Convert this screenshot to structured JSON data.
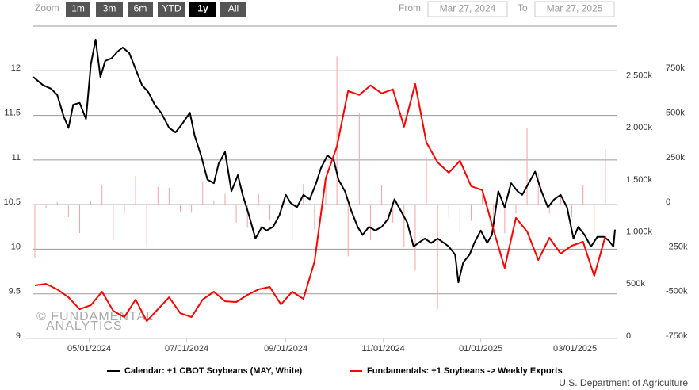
{
  "ui": {
    "zoom_label": "Zoom",
    "buttons": [
      "1m",
      "3m",
      "6m",
      "YTD",
      "1y",
      "All"
    ],
    "selected_button": 4,
    "from_label": "From",
    "from": "Mar 27, 2024",
    "to_label": "To",
    "to": "Mar 27, 2025",
    "watermark": [
      "© FUNDAMENTAL",
      "ANALYTICS"
    ],
    "credits": "U.S. Department of Agriculture"
  },
  "chart_data": {
    "type": "combo",
    "xlim": [
      "03/27/2024",
      "03/27/2025"
    ],
    "xticks": [
      "05/01/2024",
      "07/01/2024",
      "09/01/2024",
      "11/01/2024",
      "01/01/2025",
      "03/01/2025"
    ],
    "ylim": [
      9,
      12.5
    ],
    "yticks": [
      9,
      9.5,
      10,
      10.5,
      11,
      11.5,
      12
    ],
    "y2lim": [
      0,
      3000
    ],
    "y2ticks": [
      0,
      {
        "value": 500,
        "label": "500k"
      },
      {
        "value": 1000,
        "label": "1,000k"
      },
      {
        "value": 1500,
        "label": "1,500k"
      },
      {
        "value": 2000,
        "label": "2,000k"
      },
      {
        "value": 2500,
        "label": "2,500k"
      }
    ],
    "y3lim": [
      -750,
      1000
    ],
    "y3ticks": [
      {
        "value": -750,
        "label": "-750k"
      },
      {
        "value": -500,
        "label": "-500k"
      },
      {
        "value": -250,
        "label": "-250k"
      },
      0,
      {
        "value": 250,
        "label": "250k"
      },
      {
        "value": 500,
        "label": "500k"
      },
      {
        "value": 750,
        "label": "750k"
      }
    ],
    "grid": true,
    "series": [
      {
        "name": "Calendar: +1 CBOT Soybeans (MAY, White)",
        "type": "line",
        "axis": "y",
        "color": "#000000",
        "x": [
          "03/27/2024",
          "04/02/2024",
          "04/07/2024",
          "04/11/2024",
          "04/15/2024",
          "04/18/2024",
          "04/21/2024",
          "04/25/2024",
          "04/29/2024",
          "05/02/2024",
          "05/05/2024",
          "05/08/2024",
          "05/11/2024",
          "05/15/2024",
          "05/19/2024",
          "05/22/2024",
          "05/26/2024",
          "05/30/2024",
          "06/03/2024",
          "06/07/2024",
          "06/11/2024",
          "06/15/2024",
          "06/20/2024",
          "06/24/2024",
          "06/28/2024",
          "07/03/2024",
          "07/06/2024",
          "07/10/2024",
          "07/14/2024",
          "07/18/2024",
          "07/21/2024",
          "07/25/2024",
          "07/29/2024",
          "08/02/2024",
          "08/05/2024",
          "08/09/2024",
          "08/13/2024",
          "08/17/2024",
          "08/20/2024",
          "08/24/2024",
          "08/28/2024",
          "09/01/2024",
          "09/04/2024",
          "09/08/2024",
          "09/12/2024",
          "09/16/2024",
          "09/20/2024",
          "09/23/2024",
          "09/27/2024",
          "10/01/2024",
          "10/04/2024",
          "10/08/2024",
          "10/12/2024",
          "10/16/2024",
          "10/19/2024",
          "10/23/2024",
          "10/27/2024",
          "10/31/2024",
          "11/04/2024",
          "11/08/2024",
          "11/12/2024",
          "11/16/2024",
          "11/20/2024",
          "11/23/2024",
          "11/27/2024",
          "12/01/2024",
          "12/05/2024",
          "12/09/2024",
          "12/12/2024",
          "12/16/2024",
          "12/18/2024",
          "12/21/2024",
          "12/25/2024",
          "12/28/2024",
          "01/01/2025",
          "01/05/2025",
          "01/08/2025",
          "01/12/2025",
          "01/16/2025",
          "01/20/2025",
          "01/24/2025",
          "01/27/2025",
          "01/31/2025",
          "02/04/2025",
          "02/08/2025",
          "02/12/2025",
          "02/16/2025",
          "02/20/2025",
          "02/24/2025",
          "02/28/2025",
          "03/03/2025",
          "03/07/2025",
          "03/11/2025",
          "03/15/2025",
          "03/19/2025",
          "03/22/2025",
          "03/25/2025",
          "03/26/2025"
        ],
        "values": [
          11.93,
          11.84,
          11.8,
          11.73,
          11.49,
          11.36,
          11.62,
          11.64,
          11.46,
          12.07,
          12.35,
          11.93,
          12.11,
          12.14,
          12.22,
          12.26,
          12.2,
          12.02,
          11.84,
          11.76,
          11.62,
          11.53,
          11.36,
          11.31,
          11.4,
          11.53,
          11.27,
          11.05,
          10.78,
          10.74,
          10.96,
          11.09,
          10.65,
          10.83,
          10.61,
          10.38,
          10.12,
          10.25,
          10.21,
          10.25,
          10.38,
          10.61,
          10.52,
          10.47,
          10.61,
          10.56,
          10.74,
          10.91,
          11.05,
          11.0,
          10.78,
          10.65,
          10.43,
          10.25,
          10.16,
          10.25,
          10.21,
          10.25,
          10.34,
          10.56,
          10.43,
          10.3,
          10.03,
          10.07,
          10.12,
          10.07,
          10.12,
          10.07,
          10.03,
          9.94,
          9.63,
          9.85,
          9.94,
          10.07,
          10.21,
          10.07,
          10.16,
          10.65,
          10.47,
          10.74,
          10.65,
          10.61,
          10.74,
          10.87,
          10.65,
          10.47,
          10.56,
          10.61,
          10.47,
          10.12,
          10.25,
          10.16,
          10.03,
          10.14,
          10.14,
          10.1,
          10.03,
          10.22
        ]
      },
      {
        "name": "Fundamentals: +1 Soybeans -> Weekly Exports",
        "type": "line",
        "axis": "y2",
        "color": "#ff0000",
        "x": [
          "03/28/2024",
          "04/04/2024",
          "04/11/2024",
          "04/18/2024",
          "04/25/2024",
          "05/02/2024",
          "05/09/2024",
          "05/16/2024",
          "05/23/2024",
          "05/30/2024",
          "06/06/2024",
          "06/13/2024",
          "06/20/2024",
          "06/27/2024",
          "07/04/2024",
          "07/11/2024",
          "07/18/2024",
          "07/25/2024",
          "08/01/2024",
          "08/08/2024",
          "08/15/2024",
          "08/22/2024",
          "08/29/2024",
          "09/05/2024",
          "09/12/2024",
          "09/19/2024",
          "09/26/2024",
          "10/03/2024",
          "10/10/2024",
          "10/17/2024",
          "10/24/2024",
          "10/31/2024",
          "11/07/2024",
          "11/14/2024",
          "11/21/2024",
          "11/28/2024",
          "12/05/2024",
          "12/12/2024",
          "12/19/2024",
          "12/26/2024",
          "01/02/2025",
          "01/09/2025",
          "01/16/2025",
          "01/23/2025",
          "01/30/2025",
          "02/06/2025",
          "02/13/2025",
          "02/20/2025",
          "02/27/2025",
          "03/06/2025",
          "03/13/2025",
          "03/20/2025"
        ],
        "values": [
          510,
          525,
          472,
          395,
          281,
          319,
          449,
          266,
          205,
          373,
          167,
          281,
          395,
          243,
          205,
          373,
          449,
          357,
          350,
          418,
          472,
          495,
          327,
          449,
          380,
          739,
          1539,
          1844,
          2377,
          2339,
          2431,
          2354,
          2393,
          2034,
          2446,
          1882,
          1691,
          1592,
          1707,
          1463,
          1425,
          1043,
          678,
          1158,
          1028,
          754,
          967,
          815,
          891,
          929,
          601,
          982
        ]
      },
      {
        "type": "bar",
        "axis": "y3",
        "color": "#f5a3a3",
        "x": [
          "03/28/2024",
          "04/04/2024",
          "04/11/2024",
          "04/18/2024",
          "04/25/2024",
          "05/02/2024",
          "05/09/2024",
          "05/16/2024",
          "05/23/2024",
          "05/30/2024",
          "06/06/2024",
          "06/13/2024",
          "06/20/2024",
          "06/27/2024",
          "07/04/2024",
          "07/11/2024",
          "07/18/2024",
          "07/25/2024",
          "08/01/2024",
          "08/08/2024",
          "08/15/2024",
          "08/22/2024",
          "08/29/2024",
          "09/05/2024",
          "09/12/2024",
          "09/19/2024",
          "09/26/2024",
          "10/03/2024",
          "10/10/2024",
          "10/17/2024",
          "10/24/2024",
          "10/31/2024",
          "11/07/2024",
          "11/14/2024",
          "11/21/2024",
          "11/28/2024",
          "12/05/2024",
          "12/12/2024",
          "12/19/2024",
          "12/26/2024",
          "01/02/2025",
          "01/09/2025",
          "01/16/2025",
          "01/23/2025",
          "01/30/2025",
          "02/06/2025",
          "02/13/2025",
          "02/20/2025",
          "02/27/2025",
          "03/06/2025",
          "03/13/2025",
          "03/20/2025"
        ],
        "values": [
          -300,
          -20,
          15,
          -70,
          -160,
          20,
          110,
          -200,
          -50,
          160,
          -240,
          100,
          95,
          -40,
          -45,
          130,
          20,
          60,
          -100,
          -130,
          60,
          -90,
          25,
          -200,
          115,
          -140,
          150,
          830,
          -290,
          510,
          -200,
          110,
          -100,
          -240,
          -370,
          265,
          -585,
          -70,
          -160,
          -90,
          85,
          -130,
          -160,
          -50,
          430,
          175,
          -50,
          60,
          -70,
          110,
          -160,
          310
        ]
      }
    ]
  }
}
